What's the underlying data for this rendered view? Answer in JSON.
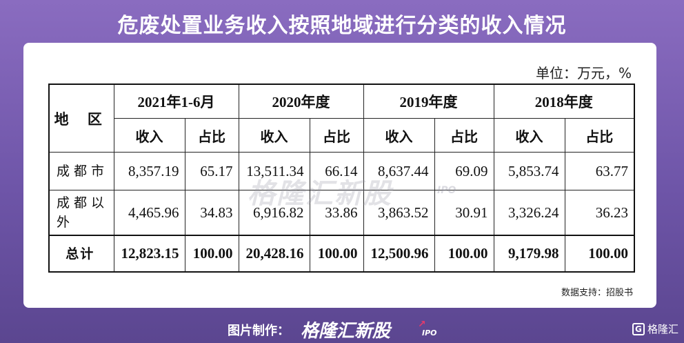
{
  "title": "危废处置业务收入按照地域进行分类的收入情况",
  "unit": "单位：万元，%",
  "table": {
    "region_header": "地 区",
    "periods": [
      "2021年1-6月",
      "2020年度",
      "2019年度",
      "2018年度"
    ],
    "sub_headers": [
      "收入",
      "占比"
    ],
    "rows": [
      {
        "label": "成都市",
        "values": [
          "8,357.19",
          "65.17",
          "13,511.34",
          "66.14",
          "8,637.44",
          "69.09",
          "5,853.74",
          "63.77"
        ]
      },
      {
        "label": "成都以外",
        "values": [
          "4,465.96",
          "34.83",
          "6,916.82",
          "33.86",
          "3,863.52",
          "30.91",
          "3,326.24",
          "36.23"
        ]
      },
      {
        "label": "总计",
        "values": [
          "12,823.15",
          "100.00",
          "20,428.16",
          "100.00",
          "12,500.96",
          "100.00",
          "9,179.98",
          "100.00"
        ]
      }
    ]
  },
  "source": "数据支持：招股书",
  "footer": {
    "made_by": "图片制作：",
    "brand": "格隆汇新股",
    "brand_sub": "IPO"
  },
  "watermark": {
    "text": "格隆汇新股",
    "sub": "IPO"
  },
  "logo": {
    "mark": "G",
    "text": "格隆汇"
  }
}
